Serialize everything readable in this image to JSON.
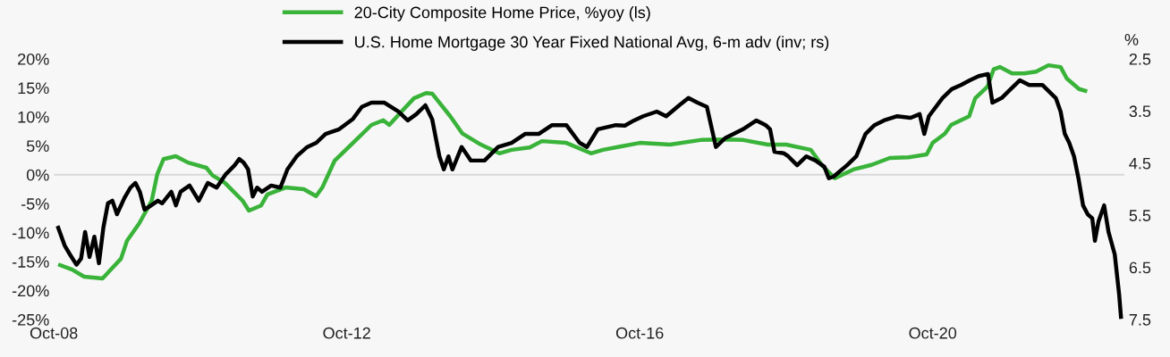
{
  "chart_data": {
    "type": "line",
    "y2label": "%",
    "xlim": [
      "2008-10-01",
      "2023-05-15"
    ],
    "xticks": [
      {
        "value": "2008-10-01",
        "label": "Oct-08"
      },
      {
        "value": "2012-10-01",
        "label": "Oct-12"
      },
      {
        "value": "2016-10-01",
        "label": "Oct-16"
      },
      {
        "value": "2020-10-01",
        "label": "Oct-20"
      }
    ],
    "ylim": [
      -25,
      20
    ],
    "yticks": [
      {
        "value": -25,
        "label": "-25%"
      },
      {
        "value": -20,
        "label": "-20%"
      },
      {
        "value": -15,
        "label": "-15%"
      },
      {
        "value": -10,
        "label": "-10%"
      },
      {
        "value": -5,
        "label": "-5%"
      },
      {
        "value": 0,
        "label": "0%"
      },
      {
        "value": 5,
        "label": "5%"
      },
      {
        "value": 10,
        "label": "10%"
      },
      {
        "value": 15,
        "label": "15%"
      },
      {
        "value": 20,
        "label": "20%"
      }
    ],
    "y2lim": [
      7.5,
      2.5
    ],
    "y2ticks": [
      2.5,
      3.5,
      4.5,
      5.5,
      6.5,
      7.5
    ],
    "grid": false,
    "legend": "top",
    "ref_lines": [
      {
        "axis": "y",
        "value": 0,
        "color": "#d9d9d9"
      }
    ],
    "series": [
      {
        "name": "20-City Composite Home Price, %yoy (ls)",
        "color": "#39b339",
        "axis": "y",
        "x": [
          "2008-11",
          "2009-01",
          "2009-03",
          "2009-06",
          "2009-07",
          "2009-09",
          "2009-10",
          "2009-12",
          "2010-02",
          "2010-03",
          "2010-04",
          "2010-06",
          "2010-08",
          "2010-11",
          "2010-12",
          "2011-02",
          "2011-05",
          "2011-06",
          "2011-08",
          "2011-09",
          "2011-12",
          "2012-03",
          "2012-05",
          "2012-06",
          "2012-08",
          "2012-11",
          "2013-02",
          "2013-04",
          "2013-05",
          "2013-07",
          "2013-09",
          "2013-11",
          "2013-12",
          "2014-03",
          "2014-05",
          "2014-08",
          "2014-11",
          "2015-01",
          "2015-04",
          "2015-06",
          "2015-10",
          "2016-02",
          "2016-04",
          "2016-07",
          "2016-10",
          "2017-03",
          "2017-08",
          "2017-12",
          "2018-03",
          "2018-07",
          "2018-10",
          "2019-02",
          "2019-04",
          "2019-06",
          "2019-09",
          "2019-12",
          "2020-03",
          "2020-06",
          "2020-09",
          "2020-10",
          "2020-12",
          "2021-01",
          "2021-04",
          "2021-05",
          "2021-07",
          "2021-08",
          "2021-09",
          "2021-11",
          "2022-01",
          "2022-03",
          "2022-05",
          "2022-07",
          "2022-08",
          "2022-10",
          "2022-11"
        ],
        "values": [
          -15.6,
          -16.4,
          -17.6,
          -17.9,
          -16.8,
          -14.5,
          -11.4,
          -8.4,
          -4.5,
          0.1,
          2.7,
          3.2,
          2.1,
          1.2,
          -0.1,
          -1.4,
          -4.5,
          -6.2,
          -5.3,
          -3.4,
          -2.2,
          -2.5,
          -3.7,
          -2.2,
          2.4,
          5.5,
          8.6,
          9.4,
          8.6,
          10.9,
          13.2,
          14.1,
          14.0,
          10.1,
          7.1,
          5.2,
          3.7,
          4.3,
          4.7,
          5.8,
          5.5,
          3.7,
          4.3,
          4.9,
          5.5,
          5.2,
          6.0,
          6.1,
          6.0,
          5.2,
          5.2,
          4.3,
          1.5,
          -0.6,
          0.9,
          1.7,
          2.9,
          3.0,
          3.5,
          5.5,
          7.1,
          8.6,
          10.1,
          13.2,
          15.2,
          18.2,
          18.6,
          17.5,
          17.5,
          17.8,
          18.9,
          18.6,
          16.6,
          14.8,
          14.5
        ]
      },
      {
        "name": "U.S. Home Mortgage 30 Year Fixed National Avg, 6-m adv (inv; rs)",
        "color": "#000000",
        "axis": "y2",
        "x": [
          "2008-10-23",
          "2008-11-24",
          "2008-12-20",
          "2009-01-22",
          "2009-02-14",
          "2009-03-06",
          "2009-03-28",
          "2009-04-21",
          "2009-05-14",
          "2009-06-05",
          "2009-06-28",
          "2009-07-20",
          "2009-08-12",
          "2009-09-18",
          "2009-10-18",
          "2009-11-12",
          "2009-12-04",
          "2009-12-27",
          "2010-01-18",
          "2010-03-04",
          "2010-03-25",
          "2010-05-10",
          "2010-06-02",
          "2010-06-25",
          "2010-08-09",
          "2010-09-24",
          "2010-11-08",
          "2010-12-22",
          "2011-02-06",
          "2011-03-22",
          "2011-04-14",
          "2011-05-06",
          "2011-05-28",
          "2011-06-20",
          "2011-07-12",
          "2011-08-05",
          "2011-09-20",
          "2011-11-05",
          "2011-12-10",
          "2012-01-25",
          "2012-03-18",
          "2012-05-02",
          "2012-06-17",
          "2012-08-24",
          "2012-11-01",
          "2012-12-15",
          "2013-02-01",
          "2013-04-07",
          "2013-06-15",
          "2013-08-01",
          "2013-09-13",
          "2013-10-28",
          "2013-12-01",
          "2014-01-06",
          "2014-01-28",
          "2014-02-20",
          "2014-03-12",
          "2014-04-27",
          "2014-06-12",
          "2014-08-19",
          "2014-10-26",
          "2015-01-01",
          "2015-03-09",
          "2015-05-16",
          "2015-07-22",
          "2015-10-01",
          "2015-12-06",
          "2016-01-12",
          "2016-03-06",
          "2016-06-04",
          "2016-07-19",
          "2016-09-03",
          "2016-10-18",
          "2016-12-25",
          "2017-02-10",
          "2017-04-16",
          "2017-06-01",
          "2017-07-16",
          "2017-09-01",
          "2017-10-16",
          "2017-12-01",
          "2018-02-28",
          "2018-05-06",
          "2018-06-21",
          "2018-07-13",
          "2018-08-04",
          "2018-09-19",
          "2018-10-12",
          "2018-11-25",
          "2019-01-10",
          "2019-02-25",
          "2019-04-10",
          "2019-05-02",
          "2019-05-25",
          "2019-08-01",
          "2019-09-16",
          "2019-11-01",
          "2019-12-16",
          "2020-02-01",
          "2020-04-07",
          "2020-06-13",
          "2020-07-28",
          "2020-08-20",
          "2020-09-12",
          "2020-11-19",
          "2021-01-04",
          "2021-02-19",
          "2021-04-04",
          "2021-05-19",
          "2021-07-04",
          "2021-07-26",
          "2021-09-10",
          "2021-10-25",
          "2021-12-10",
          "2022-01-25",
          "2022-04-01",
          "2022-05-16",
          "2022-06-07",
          "2022-07-01",
          "2022-07-22",
          "2022-08-13",
          "2022-09-06",
          "2022-09-28",
          "2022-10-21",
          "2022-11-13",
          "2022-12-06",
          "2022-12-19",
          "2023-01-06",
          "2023-02-03",
          "2023-02-25",
          "2023-03-28",
          "2023-04-19",
          "2023-04-28"
        ],
        "values": [
          5.74,
          6.08,
          6.25,
          6.45,
          6.33,
          5.82,
          6.3,
          5.91,
          6.42,
          5.74,
          5.27,
          5.22,
          5.48,
          5.17,
          4.97,
          4.88,
          5.05,
          5.39,
          5.34,
          5.22,
          5.27,
          5.05,
          5.31,
          5.05,
          4.93,
          5.22,
          4.88,
          4.97,
          4.71,
          4.54,
          4.42,
          4.49,
          4.62,
          5.14,
          4.97,
          5.05,
          4.93,
          4.97,
          4.62,
          4.37,
          4.19,
          4.11,
          3.94,
          3.85,
          3.65,
          3.42,
          3.34,
          3.34,
          3.51,
          3.68,
          3.56,
          3.39,
          3.66,
          4.37,
          4.62,
          4.37,
          4.62,
          4.19,
          4.45,
          4.45,
          4.19,
          4.11,
          3.94,
          3.94,
          3.77,
          3.77,
          4.11,
          4.19,
          3.85,
          3.77,
          3.78,
          3.68,
          3.6,
          3.51,
          3.6,
          3.39,
          3.25,
          3.34,
          3.42,
          4.19,
          4.02,
          3.85,
          3.68,
          3.77,
          3.85,
          4.28,
          4.31,
          4.37,
          4.54,
          4.37,
          4.45,
          4.57,
          4.79,
          4.76,
          4.54,
          4.37,
          3.94,
          3.77,
          3.68,
          3.6,
          3.63,
          3.56,
          3.94,
          3.6,
          3.25,
          3.08,
          3.0,
          2.91,
          2.83,
          2.79,
          3.34,
          3.25,
          3.08,
          2.91,
          3.0,
          3.0,
          3.17,
          3.25,
          3.51,
          3.94,
          4.11,
          4.37,
          4.79,
          5.31,
          5.48,
          5.56,
          5.99,
          5.62,
          5.31,
          5.82,
          6.25,
          7.02,
          7.45
        ]
      }
    ]
  }
}
